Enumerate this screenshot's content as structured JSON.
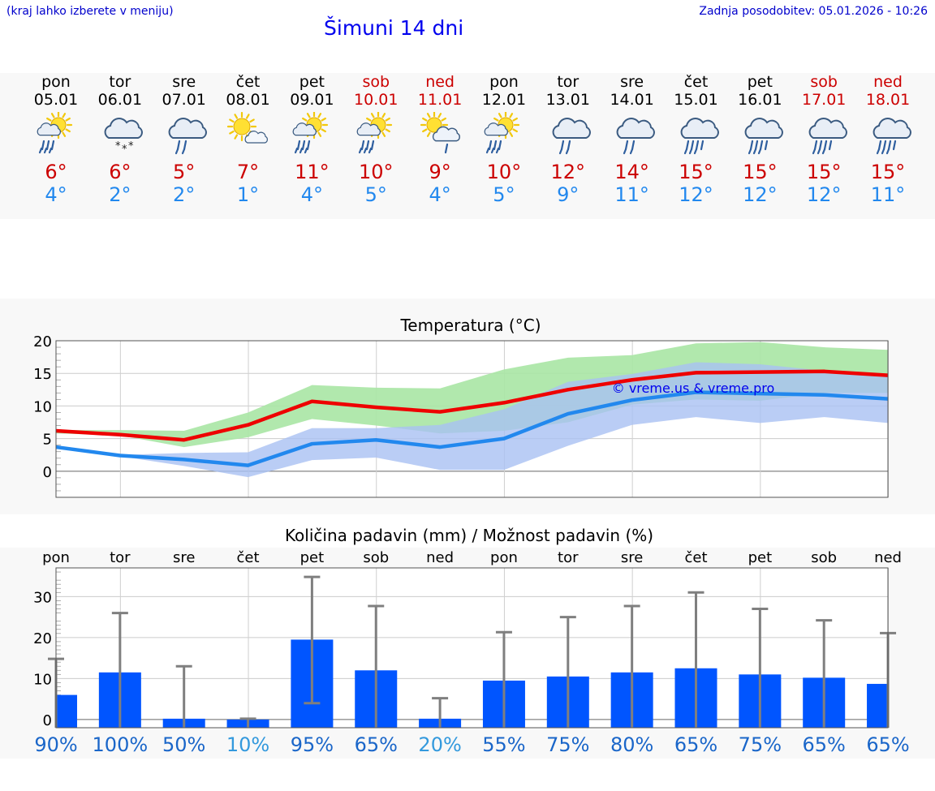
{
  "header": {
    "hint": "(kraj lahko izberete v meniju)",
    "title": "Šimuni 14 dni",
    "updated": "Zadnja posodobitev: 05.01.2026 - 10:26"
  },
  "days": [
    {
      "name": "pon",
      "date": "05.01",
      "weekend": false,
      "icon": "sun-cloud-rain-icon",
      "tmax": "6°",
      "tmin": "4°"
    },
    {
      "name": "tor",
      "date": "06.01",
      "weekend": false,
      "icon": "cloud-snow-icon",
      "tmax": "6°",
      "tmin": "2°"
    },
    {
      "name": "sre",
      "date": "07.01",
      "weekend": false,
      "icon": "cloud-rain-icon",
      "tmax": "5°",
      "tmin": "2°"
    },
    {
      "name": "čet",
      "date": "08.01",
      "weekend": false,
      "icon": "sun-cloud-icon",
      "tmax": "7°",
      "tmin": "1°"
    },
    {
      "name": "pet",
      "date": "09.01",
      "weekend": false,
      "icon": "sun-cloud-rain-icon",
      "tmax": "11°",
      "tmin": "4°"
    },
    {
      "name": "sob",
      "date": "10.01",
      "weekend": true,
      "icon": "sun-cloud-rain-icon",
      "tmax": "10°",
      "tmin": "5°"
    },
    {
      "name": "ned",
      "date": "11.01",
      "weekend": true,
      "icon": "sun-cloud-light-rain-icon",
      "tmax": "9°",
      "tmin": "4°"
    },
    {
      "name": "pon",
      "date": "12.01",
      "weekend": false,
      "icon": "sun-cloud-rain-icon",
      "tmax": "10°",
      "tmin": "5°"
    },
    {
      "name": "tor",
      "date": "13.01",
      "weekend": false,
      "icon": "cloud-rain-icon",
      "tmax": "12°",
      "tmin": "9°"
    },
    {
      "name": "sre",
      "date": "14.01",
      "weekend": false,
      "icon": "cloud-rain-icon",
      "tmax": "14°",
      "tmin": "11°"
    },
    {
      "name": "čet",
      "date": "15.01",
      "weekend": false,
      "icon": "cloud-heavy-rain-icon",
      "tmax": "15°",
      "tmin": "12°"
    },
    {
      "name": "pet",
      "date": "16.01",
      "weekend": false,
      "icon": "cloud-heavy-rain-icon",
      "tmax": "15°",
      "tmin": "12°"
    },
    {
      "name": "sob",
      "date": "17.01",
      "weekend": true,
      "icon": "cloud-heavy-rain-icon",
      "tmax": "15°",
      "tmin": "12°"
    },
    {
      "name": "ned",
      "date": "18.01",
      "weekend": true,
      "icon": "cloud-heavy-rain-icon",
      "tmax": "15°",
      "tmin": "11°"
    }
  ],
  "colors": {
    "max_line": "#ee0000",
    "min_line": "#2288ee",
    "max_band": "#a8e6a4",
    "overlap_band": "#7cc4a8",
    "min_band": "#a9c0f2",
    "bar": "#0055ff",
    "whisker": "#7f7f7f",
    "weekend": "#cc0000",
    "pct_dark": "#1a66c9",
    "pct_light": "#3399dd",
    "copyright": "#0000ee"
  },
  "chart_data": [
    {
      "type": "line",
      "title": "Temperatura (°C)",
      "ylim": [
        -4,
        20
      ],
      "yticks": [
        20,
        15,
        10,
        5,
        0
      ],
      "copyright": "© vreme.us & vreme.pro",
      "series": [
        {
          "name": "max",
          "values": [
            6.2,
            5.6,
            4.8,
            7.1,
            10.7,
            9.8,
            9.1,
            10.5,
            12.5,
            14.0,
            15.1,
            15.2,
            15.3,
            14.7
          ]
        },
        {
          "name": "min",
          "values": [
            3.7,
            2.4,
            1.8,
            0.9,
            4.2,
            4.8,
            3.7,
            5.0,
            8.8,
            10.9,
            12.1,
            11.9,
            11.7,
            11.1
          ]
        },
        {
          "name": "max_range_low",
          "values": [
            5.8,
            5.5,
            3.7,
            5.2,
            8.0,
            7.0,
            5.8,
            6.2,
            7.5,
            10.2,
            11.0,
            10.8,
            12.0,
            12.0
          ]
        },
        {
          "name": "max_range_high",
          "values": [
            6.3,
            6.3,
            6.2,
            9.0,
            13.2,
            12.8,
            12.7,
            15.6,
            17.4,
            17.8,
            19.6,
            19.8,
            19.0,
            18.6
          ]
        },
        {
          "name": "min_range_low",
          "values": [
            3.6,
            2.3,
            0.8,
            -0.9,
            1.7,
            2.1,
            0.2,
            0.2,
            3.9,
            7.1,
            8.3,
            7.4,
            8.3,
            7.4
          ]
        },
        {
          "name": "min_range_high",
          "values": [
            3.7,
            2.5,
            2.8,
            2.9,
            6.6,
            6.6,
            7.1,
            9.5,
            13.7,
            14.9,
            16.7,
            16.4,
            15.4,
            14.8
          ]
        }
      ]
    },
    {
      "type": "bar",
      "title": "Količina padavin (mm) / Možnost padavin (%)",
      "ylim": [
        -2,
        37
      ],
      "yticks": [
        30,
        20,
        10,
        0
      ],
      "categories": [
        "pon",
        "tor",
        "sre",
        "čet",
        "pet",
        "sob",
        "ned",
        "pon",
        "tor",
        "sre",
        "čet",
        "pet",
        "sob",
        "ned"
      ],
      "values": [
        6.0,
        11.5,
        0.2,
        0.0,
        19.5,
        12.0,
        0.2,
        9.5,
        10.5,
        11.5,
        12.5,
        11.0,
        10.2,
        8.7
      ],
      "range_high": [
        14.8,
        26.0,
        13.0,
        0.2,
        34.8,
        27.7,
        5.2,
        21.3,
        25.0,
        27.7,
        31.0,
        27.0,
        24.2,
        21.1
      ],
      "range_low": [
        0,
        0,
        0,
        0,
        4.0,
        0,
        0,
        0,
        0,
        0,
        0,
        0,
        0,
        0
      ],
      "probability": [
        "90%",
        "100%",
        "50%",
        "10%",
        "95%",
        "65%",
        "20%",
        "55%",
        "75%",
        "80%",
        "65%",
        "75%",
        "65%",
        "65%"
      ]
    }
  ]
}
